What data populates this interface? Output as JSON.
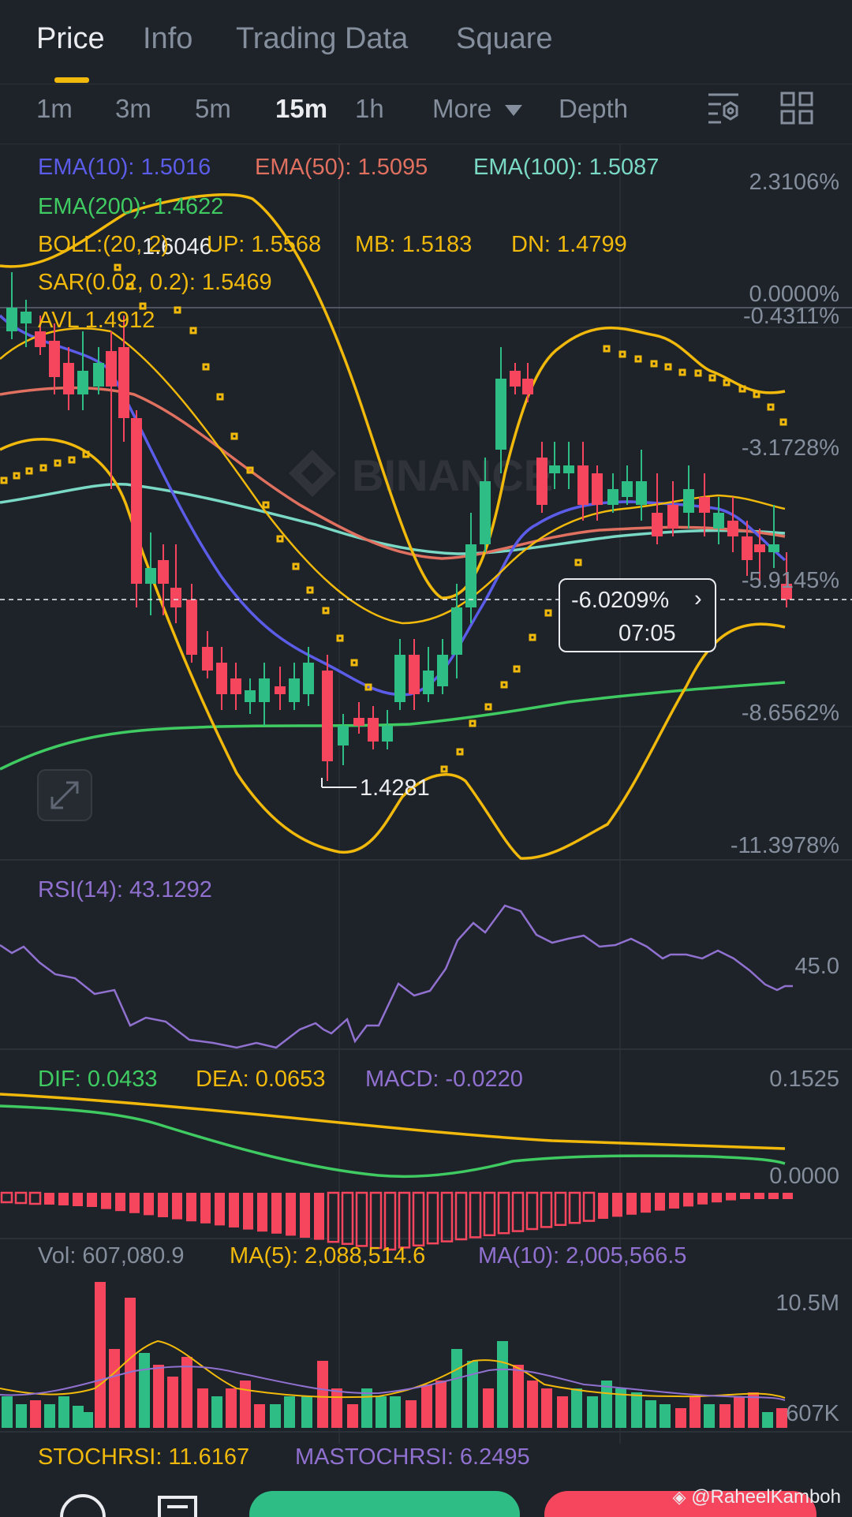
{
  "tabs": [
    {
      "label": "Price",
      "active": true
    },
    {
      "label": "Info",
      "active": false
    },
    {
      "label": "Trading Data",
      "active": false
    },
    {
      "label": "Square",
      "active": false
    }
  ],
  "timeframes": [
    {
      "label": "1m",
      "active": false
    },
    {
      "label": "3m",
      "active": false
    },
    {
      "label": "5m",
      "active": false
    },
    {
      "label": "15m",
      "active": true
    },
    {
      "label": "1h",
      "active": false
    },
    {
      "label": "More",
      "active": false
    },
    {
      "label": "Depth",
      "active": false
    }
  ],
  "toolbar_icons": [
    "indicator-settings-icon",
    "grid-layout-icon"
  ],
  "colors": {
    "background": "#1e2229",
    "up": "#2ebd85",
    "down": "#f6465d",
    "accent": "#f0b90b",
    "ema10": "#5b5de8",
    "ema50": "#e0705f",
    "ema100": "#7ad9c5",
    "ema200": "#3fcb62",
    "boll": "#f0b90b",
    "rsi": "#9071d0"
  },
  "indicators": {
    "ema10": "EMA(10): 1.5016",
    "ema50": "EMA(50): 1.5095",
    "ema100": "EMA(100): 1.5087",
    "ema200": "EMA(200): 1.4622",
    "boll": "BOLL:(20, 2)",
    "boll_up": "UP: 1.5568",
    "boll_mb": "MB: 1.5183",
    "boll_dn": "DN: 1.4799",
    "sar": "SAR(0.02, 0.2): 1.5469",
    "avl": "AVL 1.4912"
  },
  "price_axis": [
    "2.3106%",
    "0.0000%",
    "-0.4311%",
    "-3.1728%",
    "-5.9145%",
    "-8.6562%",
    "-11.3978%"
  ],
  "markers": {
    "high": "1.6046",
    "low": "1.4281"
  },
  "crosshair": {
    "value": "-6.0209%",
    "time": "07:05"
  },
  "watermark": "BINANCE",
  "rsi": {
    "label": "RSI(14): 43.1292",
    "axis": "45.0"
  },
  "macd": {
    "dif": "DIF: 0.0433",
    "dea": "DEA: 0.0653",
    "macd": "MACD: -0.0220",
    "axis_top": "0.1525",
    "axis_zero": "0.0000"
  },
  "volume": {
    "vol": "Vol: 607,080.9",
    "ma5": "MA(5): 2,088,514.6",
    "ma10": "MA(10): 2,005,566.5",
    "axis_top": "10.5M",
    "axis_bottom": "607K"
  },
  "stochrsi": {
    "stoch": "STOCHRSI: 11.6167",
    "ma": "MASTOCHRSI: 6.2495"
  },
  "credit": "@RaheelKamboh"
}
